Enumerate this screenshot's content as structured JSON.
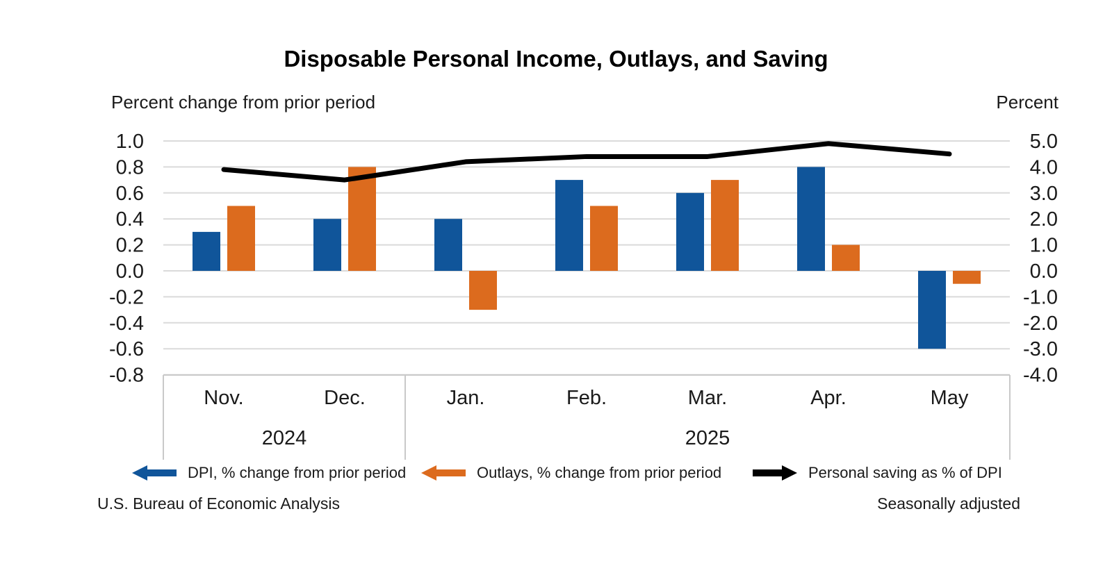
{
  "title": "Disposable Personal Income, Outlays, and Saving",
  "left_axis_title": "Percent change from prior period",
  "right_axis_title": "Percent",
  "source": "U.S. Bureau of Economic Analysis",
  "note": "Seasonally adjusted",
  "colors": {
    "dpi_blue": "#10559A",
    "outlays_orange": "#DC6B1E",
    "saving_black": "#000000",
    "gridline": "#DADADA",
    "axis_box": "#C9C9C9",
    "text": "#1A1A1A"
  },
  "legend": [
    {
      "label": "DPI, % change from prior period",
      "color": "#10559A",
      "direction": "left"
    },
    {
      "label": "Outlays, % change from prior period",
      "color": "#DC6B1E",
      "direction": "left"
    },
    {
      "label": "Personal saving as % of DPI",
      "color": "#000000",
      "direction": "right"
    }
  ],
  "chart_data": {
    "type": "bar",
    "subtype": "grouped bars with overlaid line",
    "title": "Disposable Personal Income, Outlays, and Saving",
    "categories": [
      "Nov.",
      "Dec.",
      "Jan.",
      "Feb.",
      "Mar.",
      "Apr.",
      "May"
    ],
    "year_groups": [
      {
        "label": "2024",
        "span": [
          0,
          1
        ]
      },
      {
        "label": "2025",
        "span": [
          2,
          6
        ]
      }
    ],
    "series": [
      {
        "id": "dpi",
        "name": "DPI, % change from prior period",
        "type": "bar",
        "axis": "left",
        "color": "#10559A",
        "values": [
          0.3,
          0.4,
          0.4,
          0.7,
          0.6,
          0.8,
          -0.6
        ]
      },
      {
        "id": "outlays",
        "name": "Outlays, % change from prior period",
        "type": "bar",
        "axis": "left",
        "color": "#DC6B1E",
        "values": [
          0.5,
          0.8,
          -0.3,
          0.5,
          0.7,
          0.2,
          -0.1
        ]
      },
      {
        "id": "saving",
        "name": "Personal saving as % of DPI",
        "type": "line",
        "axis": "right",
        "color": "#000000",
        "values": [
          3.9,
          3.5,
          4.2,
          4.4,
          4.4,
          4.9,
          4.5
        ]
      }
    ],
    "left_axis": {
      "title": "Percent change from prior period",
      "min": -0.8,
      "max": 1.0,
      "step": 0.2,
      "ticks": [
        "1.0",
        "0.8",
        "0.6",
        "0.4",
        "0.2",
        "0.0",
        "-0.2",
        "-0.4",
        "-0.6",
        "-0.8"
      ]
    },
    "right_axis": {
      "title": "Percent",
      "min": -4.0,
      "max": 5.0,
      "step": 1.0,
      "ticks": [
        "5.0",
        "4.0",
        "3.0",
        "2.0",
        "1.0",
        "0.0",
        "-1.0",
        "-2.0",
        "-3.0",
        "-4.0"
      ]
    },
    "grid": true,
    "legend_position": "bottom",
    "footnotes": [
      "U.S. Bureau of Economic Analysis",
      "Seasonally adjusted"
    ]
  }
}
